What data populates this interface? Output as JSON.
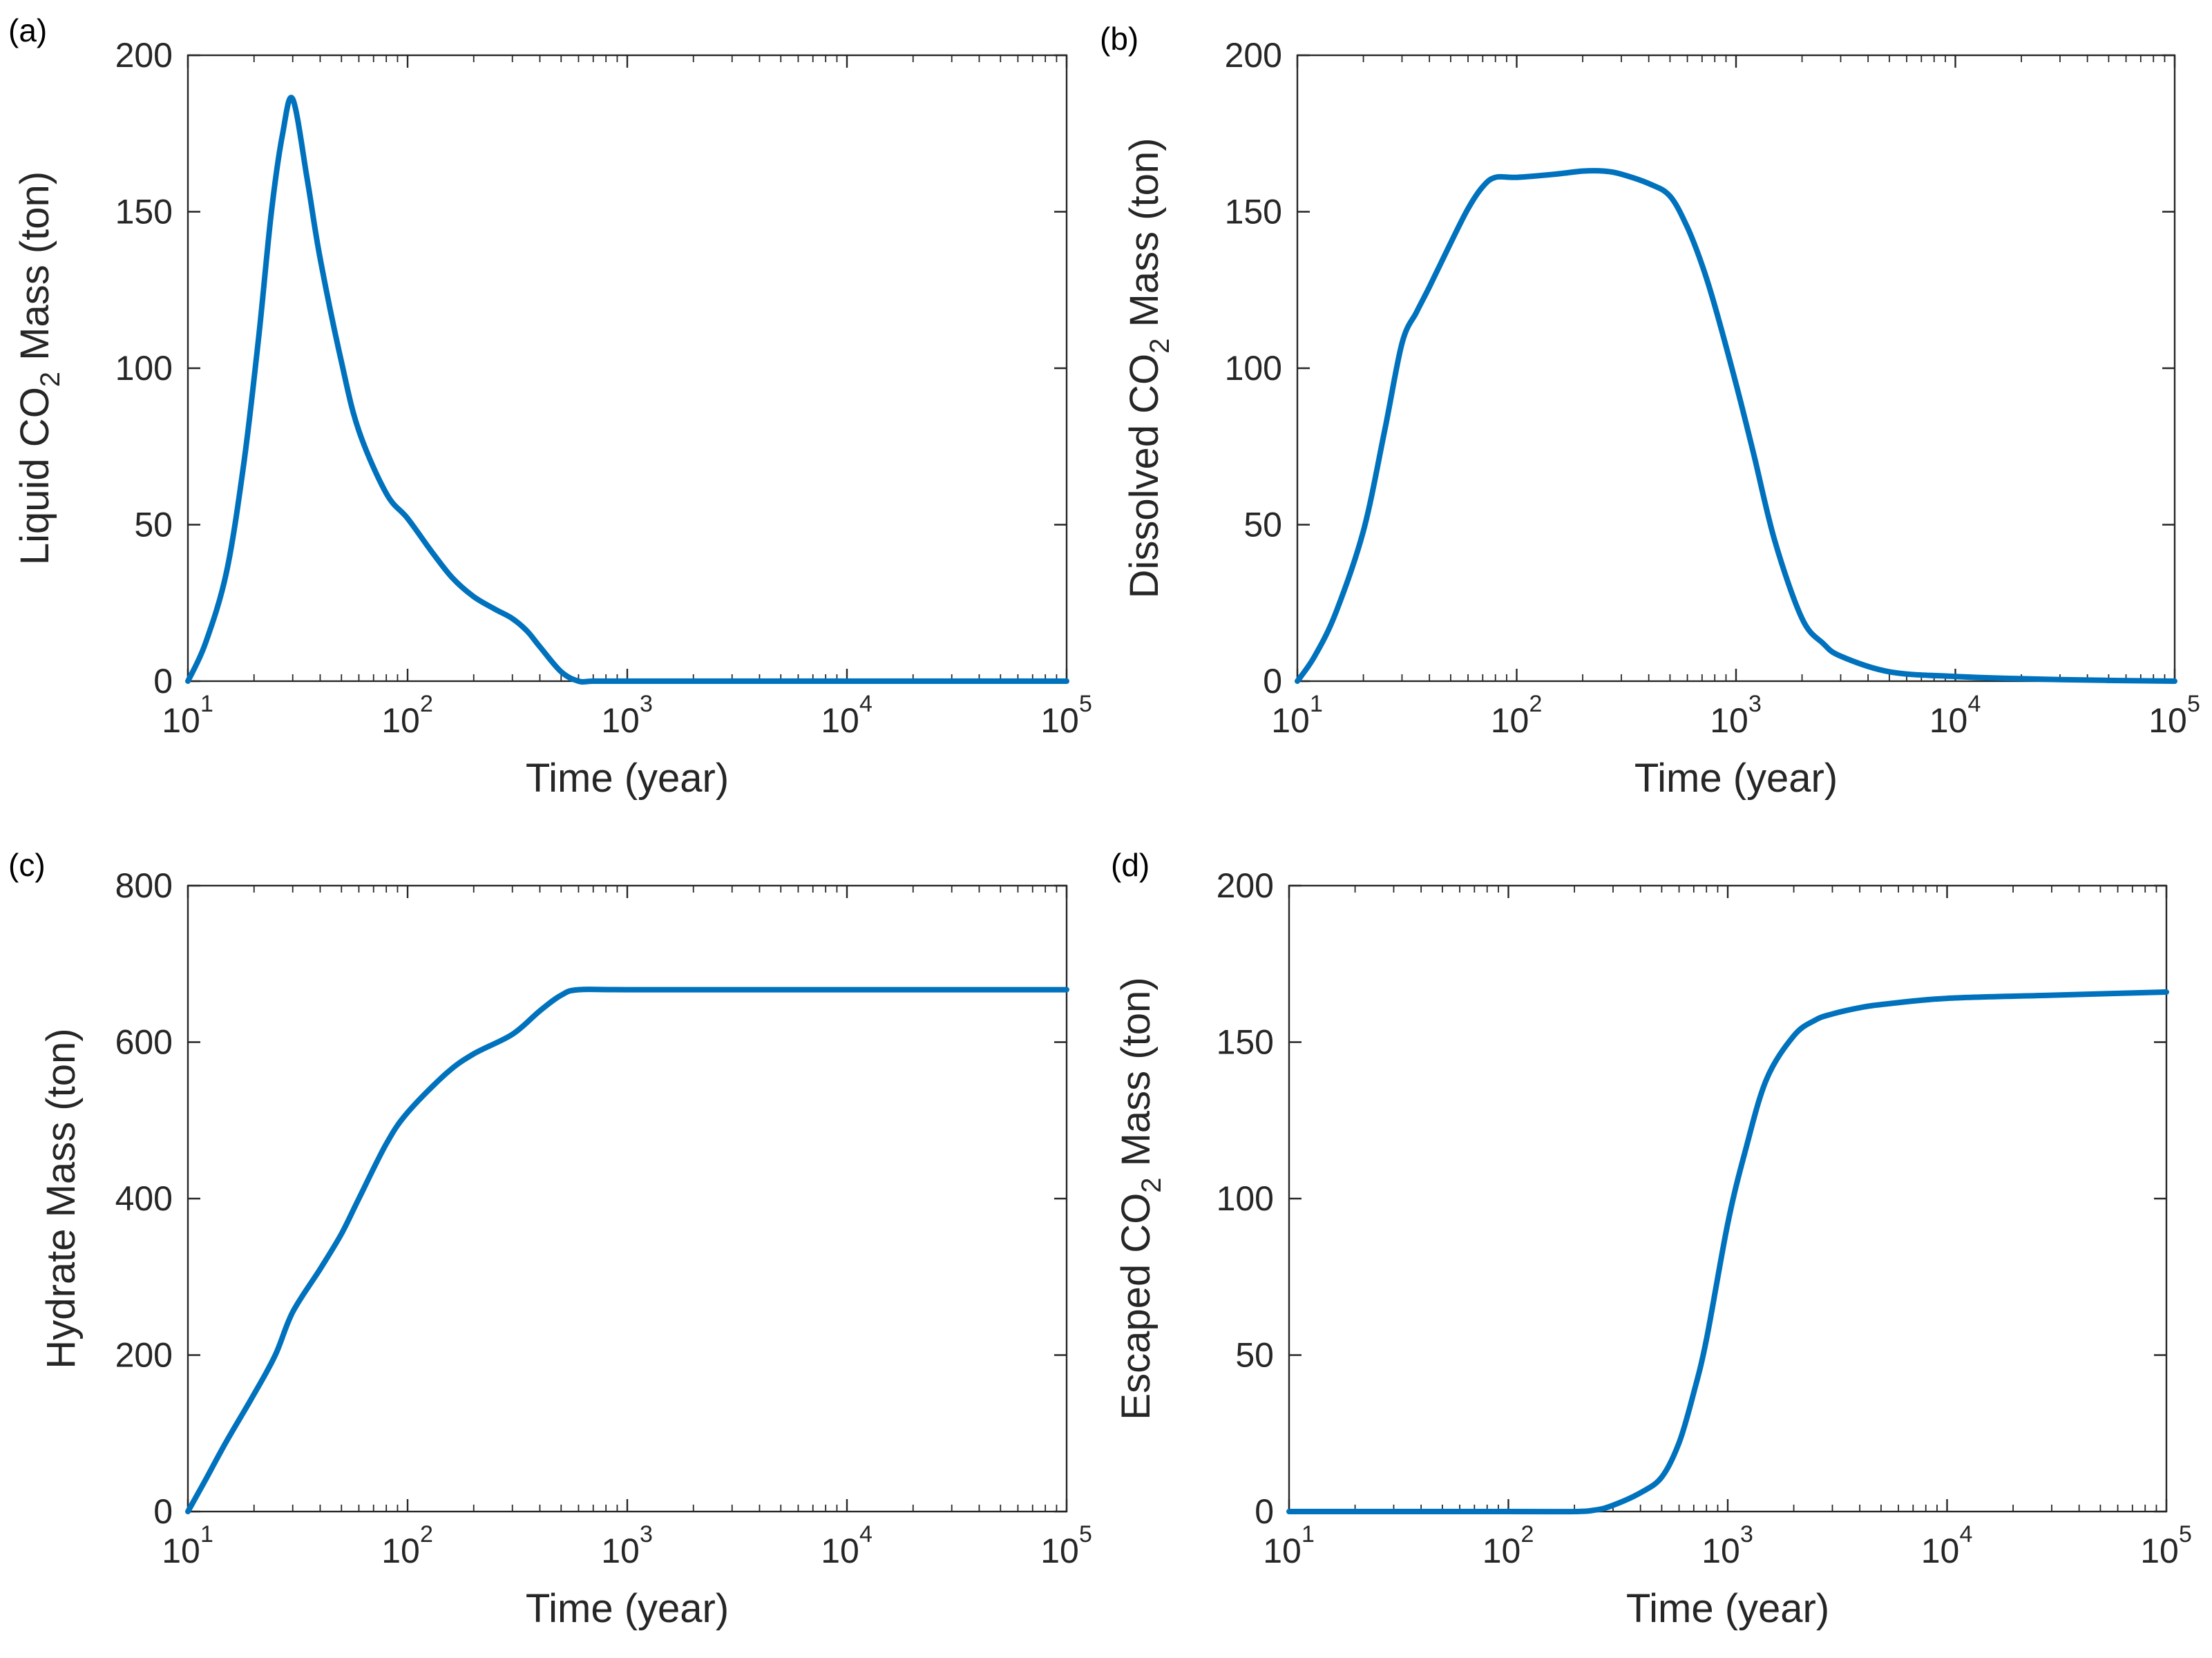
{
  "figure": {
    "line_color": "#0072BD",
    "axis_color": "#262626"
  },
  "chart_data": [
    {
      "panel_label": "(a)",
      "type": "line",
      "xscale": "log",
      "xlim": [
        10,
        100000
      ],
      "ylim": [
        0,
        200
      ],
      "yticks": [
        0,
        50,
        100,
        150,
        200
      ],
      "xtick_base": "10",
      "xtick_exponents": [
        "1",
        "2",
        "3",
        "4",
        "5"
      ],
      "xlabel": "Time (year)",
      "ylabel": {
        "before": "Liquid CO",
        "sub": "2",
        "after": " Mass (ton)"
      },
      "series": [
        {
          "name": "Liquid CO2",
          "x": [
            10,
            12,
            15,
            18,
            21,
            24,
            27,
            30,
            35,
            40,
            50,
            60,
            80,
            100,
            130,
            160,
            200,
            250,
            300,
            350,
            400,
            500,
            600,
            700,
            1000,
            10000,
            100000
          ],
          "y": [
            0,
            12,
            35,
            70,
            110,
            150,
            175,
            186,
            160,
            135,
            102,
            80,
            60,
            52,
            41,
            33,
            27,
            23,
            20,
            16,
            11,
            3,
            0,
            0,
            0,
            0,
            0
          ]
        }
      ]
    },
    {
      "panel_label": "(b)",
      "type": "line",
      "xscale": "log",
      "xlim": [
        10,
        100000
      ],
      "ylim": [
        0,
        200
      ],
      "yticks": [
        0,
        50,
        100,
        150,
        200
      ],
      "xtick_base": "10",
      "xtick_exponents": [
        "1",
        "2",
        "3",
        "4",
        "5"
      ],
      "xlabel": "Time (year)",
      "ylabel": {
        "before": "Dissolved CO",
        "sub": "2",
        "after": " Mass (ton)"
      },
      "series": [
        {
          "name": "Dissolved CO2",
          "x": [
            10,
            12,
            15,
            20,
            25,
            30,
            35,
            40,
            50,
            60,
            70,
            80,
            100,
            150,
            200,
            250,
            300,
            400,
            500,
            600,
            700,
            800,
            1000,
            1200,
            1500,
            2000,
            2500,
            3000,
            5000,
            10000,
            30000,
            100000
          ],
          "y": [
            0,
            8,
            22,
            48,
            80,
            108,
            118,
            126,
            140,
            151,
            158,
            161,
            161,
            162,
            163,
            163,
            162,
            159,
            155,
            145,
            133,
            120,
            95,
            73,
            45,
            20,
            12,
            8,
            3,
            1.5,
            0.5,
            0
          ]
        }
      ]
    },
    {
      "panel_label": "(c)",
      "type": "line",
      "xscale": "log",
      "xlim": [
        10,
        100000
      ],
      "ylim": [
        0,
        800
      ],
      "yticks": [
        0,
        200,
        400,
        600,
        800
      ],
      "xtick_base": "10",
      "xtick_exponents": [
        "1",
        "2",
        "3",
        "4",
        "5"
      ],
      "xlabel": "Time (year)",
      "ylabel": {
        "before": "Hydrate Mass (ton)",
        "sub": "",
        "after": ""
      },
      "series": [
        {
          "name": "Hydrate",
          "x": [
            10,
            12,
            15,
            20,
            25,
            30,
            40,
            50,
            60,
            80,
            100,
            150,
            200,
            300,
            400,
            500,
            600,
            1000,
            10000,
            100000
          ],
          "y": [
            0,
            40,
            90,
            150,
            200,
            255,
            310,
            355,
            400,
            470,
            510,
            560,
            585,
            610,
            640,
            660,
            667,
            667,
            667,
            667
          ]
        }
      ]
    },
    {
      "panel_label": "(d)",
      "type": "line",
      "xscale": "log",
      "xlim": [
        10,
        100000
      ],
      "ylim": [
        0,
        200
      ],
      "yticks": [
        0,
        50,
        100,
        150,
        200
      ],
      "xtick_base": "10",
      "xtick_exponents": [
        "1",
        "2",
        "3",
        "4",
        "5"
      ],
      "xlabel": "Time (year)",
      "ylabel": {
        "before": "Escaped CO",
        "sub": "2",
        "after": " Mass (ton)"
      },
      "series": [
        {
          "name": "Escaped CO2",
          "x": [
            10,
            100,
            200,
            250,
            300,
            400,
            500,
            600,
            700,
            800,
            1000,
            1200,
            1500,
            2000,
            2500,
            3000,
            4000,
            5000,
            10000,
            30000,
            100000
          ],
          "y": [
            0,
            0,
            0,
            0.5,
            2,
            6,
            11,
            22,
            38,
            55,
            92,
            115,
            138,
            152,
            157,
            159,
            161,
            162,
            164,
            165,
            166
          ]
        }
      ]
    }
  ]
}
